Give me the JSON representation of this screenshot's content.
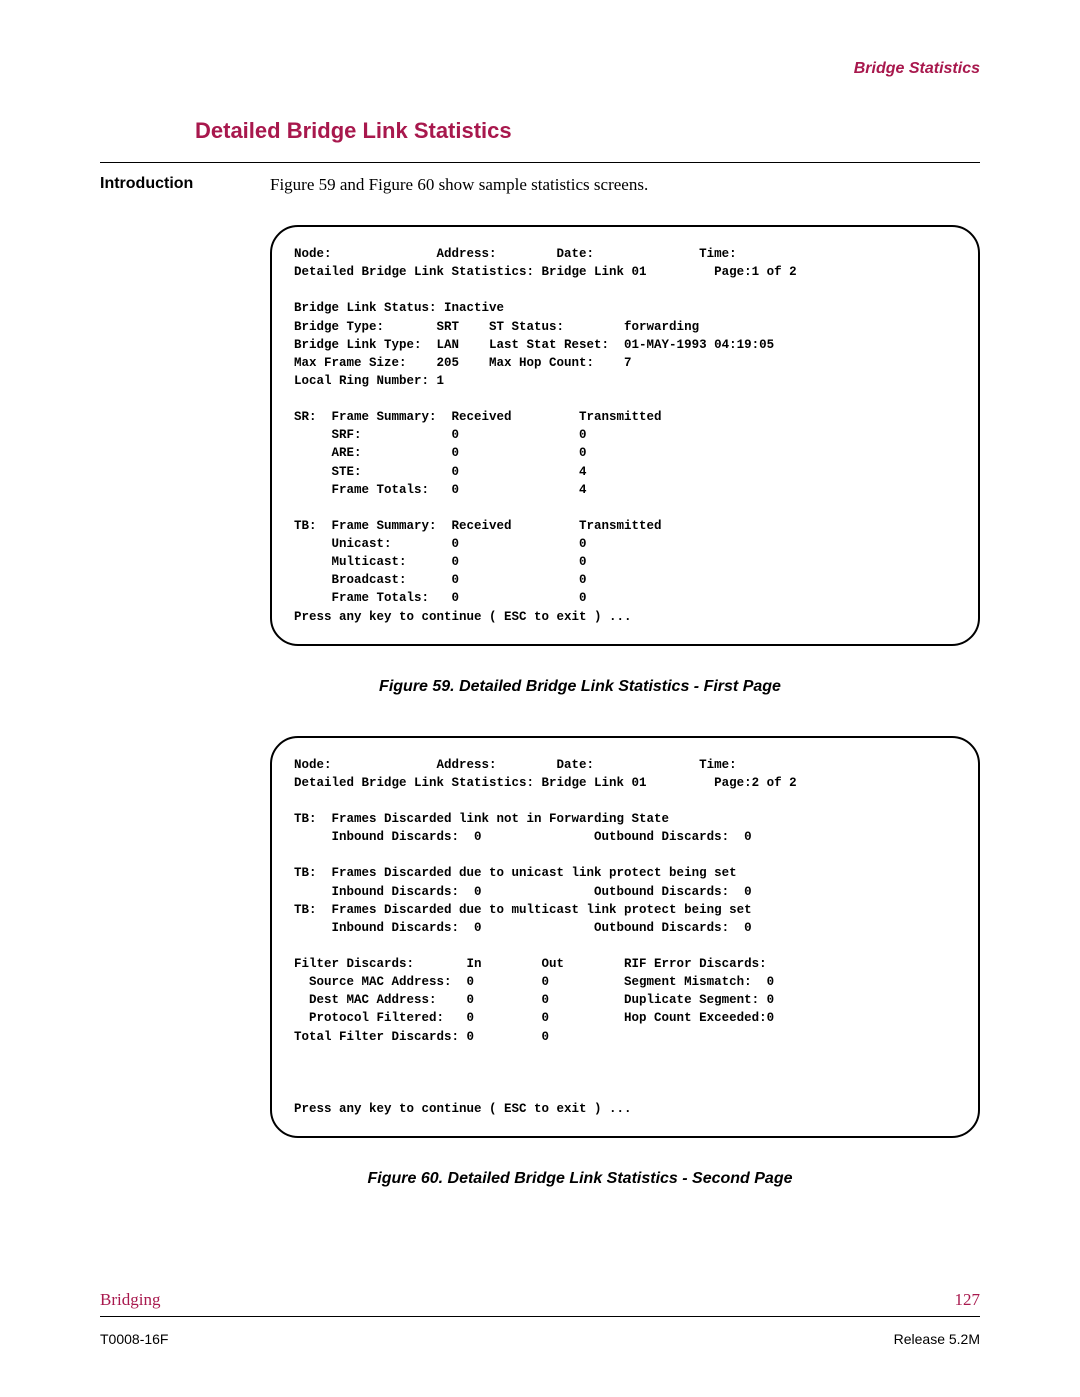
{
  "header": {
    "title": "Bridge Statistics"
  },
  "section": {
    "title": "Detailed Bridge Link Statistics"
  },
  "intro": {
    "label": "Introduction",
    "text": "Figure 59 and Figure 60 show sample statistics screens."
  },
  "figure1": {
    "caption": "Figure 59. Detailed Bridge Link Statistics - First Page",
    "header_line": "Node:              Address:        Date:              Time:",
    "subtitle": "Detailed Bridge Link Statistics: Bridge Link 01         Page:1 of 2",
    "status_l1": "Bridge Link Status: Inactive",
    "status_l2": "Bridge Type:       SRT    ST Status:        forwarding",
    "status_l3": "Bridge Link Type:  LAN    Last Stat Reset:  01-MAY-1993 04:19:05",
    "status_l4": "Max Frame Size:    205    Max Hop Count:    7",
    "status_l5": "Local Ring Number: 1",
    "sr_head": "SR:  Frame Summary:  Received         Transmitted",
    "sr_l1": "     SRF:            0                0",
    "sr_l2": "     ARE:            0                0",
    "sr_l3": "     STE:            0                4",
    "sr_l4": "     Frame Totals:   0                4",
    "tb_head": "TB:  Frame Summary:  Received         Transmitted",
    "tb_l1": "     Unicast:        0                0",
    "tb_l2": "     Multicast:      0                0",
    "tb_l3": "     Broadcast:      0                0",
    "tb_l4": "     Frame Totals:   0                0",
    "prompt": "Press any key to continue ( ESC to exit ) ..."
  },
  "figure2": {
    "caption": "Figure 60. Detailed Bridge Link Statistics - Second Page",
    "header_line": "Node:              Address:        Date:              Time:",
    "subtitle": "Detailed Bridge Link Statistics: Bridge Link 01         Page:2 of 2",
    "tb1_head": "TB:  Frames Discarded link not in Forwarding State",
    "tb1_l1": "     Inbound Discards:  0               Outbound Discards:  0",
    "tb2_head": "TB:  Frames Discarded due to unicast link protect being set",
    "tb2_l1": "     Inbound Discards:  0               Outbound Discards:  0",
    "tb3_head": "TB:  Frames Discarded due to multicast link protect being set",
    "tb3_l1": "     Inbound Discards:  0               Outbound Discards:  0",
    "flt_head": "Filter Discards:       In        Out        RIF Error Discards:",
    "flt_l1": "  Source MAC Address:  0         0          Segment Mismatch:  0",
    "flt_l2": "  Dest MAC Address:    0         0          Duplicate Segment: 0",
    "flt_l3": "  Protocol Filtered:   0         0          Hop Count Exceeded:0",
    "flt_l4": "Total Filter Discards: 0         0",
    "prompt": "Press any key to continue ( ESC to exit ) ..."
  },
  "footer": {
    "section": "Bridging",
    "page": "127",
    "doc_id": "T0008-16F",
    "release": "Release 5.2M"
  },
  "colors": {
    "accent": "#a8184d",
    "text": "#000000",
    "background": "#ffffff"
  },
  "fonts": {
    "body": "Times New Roman",
    "sans": "Arial",
    "mono": "Courier New"
  }
}
